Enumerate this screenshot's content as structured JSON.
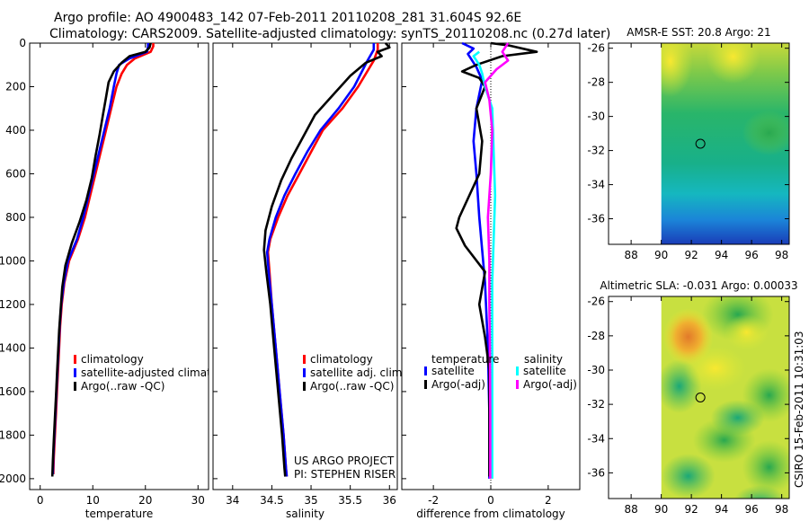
{
  "header": {
    "line1": "Argo profile: AO 4900483_142 07-Feb-2011 20110208_281 31.604S 92.6E",
    "line2": "Climatology: CARS2009. Satellite-adjusted climatology: synTS_20110208.nc (0.27d later)"
  },
  "side_note": "CSIRO 15-Feb-2011 10:31:03",
  "project_note": {
    "line1": "US ARGO PROJECT",
    "line2": "PI: STEPHEN RISER"
  },
  "colors": {
    "climatology": "#ff0000",
    "satellite": "#0000ff",
    "argo": "#000000",
    "sal_satellite": "#00ffff",
    "sal_argo": "#ff00ff"
  },
  "chart_data": [
    {
      "type": "line",
      "id": "temperature",
      "xlabel": "temperature",
      "xlim": [
        -2,
        32
      ],
      "ylim": [
        2050,
        0
      ],
      "xticks": [
        0,
        10,
        20,
        30
      ],
      "yticks": [
        0,
        200,
        400,
        600,
        800,
        1000,
        1200,
        1400,
        1600,
        1800,
        2000
      ],
      "legend": [
        "climatology",
        "satellite-adjusted climatology",
        "Argo(..raw -QC)"
      ],
      "series": [
        {
          "name": "climatology",
          "color": "#ff0000",
          "points": [
            [
              21.5,
              0
            ],
            [
              21.5,
              15
            ],
            [
              21,
              40
            ],
            [
              18,
              70
            ],
            [
              16.5,
              100
            ],
            [
              15.5,
              140
            ],
            [
              14.5,
              200
            ],
            [
              13.5,
              300
            ],
            [
              12.5,
              400
            ],
            [
              11.5,
              500
            ],
            [
              10.5,
              600
            ],
            [
              9.5,
              700
            ],
            [
              8.5,
              800
            ],
            [
              7.2,
              900
            ],
            [
              5.5,
              1000
            ],
            [
              4.6,
              1100
            ],
            [
              4.1,
              1200
            ],
            [
              3.8,
              1300
            ],
            [
              3.6,
              1400
            ],
            [
              3.4,
              1500
            ],
            [
              3.2,
              1600
            ],
            [
              3.0,
              1700
            ],
            [
              2.8,
              1800
            ],
            [
              2.6,
              1900
            ],
            [
              2.5,
              1980
            ]
          ]
        },
        {
          "name": "satellite-adjusted climatology",
          "color": "#0000ff",
          "points": [
            [
              20.5,
              0
            ],
            [
              20.5,
              15
            ],
            [
              20.3,
              40
            ],
            [
              17,
              70
            ],
            [
              15,
              100
            ],
            [
              14.5,
              140
            ],
            [
              14,
              200
            ],
            [
              13.2,
              300
            ],
            [
              12.2,
              400
            ],
            [
              11.2,
              500
            ],
            [
              10.2,
              600
            ],
            [
              9.2,
              700
            ],
            [
              8.2,
              800
            ],
            [
              7,
              900
            ],
            [
              5.3,
              1000
            ],
            [
              4.5,
              1100
            ],
            [
              4,
              1200
            ],
            [
              3.7,
              1300
            ],
            [
              3.5,
              1400
            ],
            [
              3.3,
              1500
            ],
            [
              3.1,
              1600
            ],
            [
              2.9,
              1700
            ],
            [
              2.7,
              1800
            ],
            [
              2.5,
              1900
            ],
            [
              2.4,
              1980
            ]
          ]
        },
        {
          "name": "Argo(..raw -QC)",
          "color": "#000000",
          "points": [
            [
              21,
              0
            ],
            [
              20.8,
              20
            ],
            [
              20,
              40
            ],
            [
              17,
              60
            ],
            [
              15.5,
              90
            ],
            [
              14,
              130
            ],
            [
              13,
              180
            ],
            [
              12.5,
              250
            ],
            [
              12,
              320
            ],
            [
              11.3,
              420
            ],
            [
              10.5,
              520
            ],
            [
              9.8,
              620
            ],
            [
              8.8,
              720
            ],
            [
              7.5,
              820
            ],
            [
              6,
              920
            ],
            [
              4.8,
              1020
            ],
            [
              4.2,
              1120
            ],
            [
              3.9,
              1220
            ],
            [
              3.6,
              1320
            ],
            [
              3.4,
              1420
            ],
            [
              3.2,
              1520
            ],
            [
              3.0,
              1620
            ],
            [
              2.8,
              1720
            ],
            [
              2.6,
              1820
            ],
            [
              2.4,
              1920
            ],
            [
              2.3,
              1990
            ]
          ]
        }
      ]
    },
    {
      "type": "line",
      "id": "salinity",
      "xlabel": "salinity",
      "xlim": [
        33.75,
        36.1
      ],
      "ylim": [
        2050,
        0
      ],
      "xticks": [
        34,
        34.5,
        35,
        35.5,
        36
      ],
      "legend": [
        "climatology",
        "satellite adj. clim.",
        "Argo(..raw -QC)"
      ],
      "series": [
        {
          "name": "climatology",
          "color": "#ff0000",
          "points": [
            [
              35.85,
              0
            ],
            [
              35.85,
              30
            ],
            [
              35.8,
              80
            ],
            [
              35.6,
              200
            ],
            [
              35.4,
              300
            ],
            [
              35.15,
              400
            ],
            [
              35.0,
              500
            ],
            [
              34.85,
              600
            ],
            [
              34.7,
              700
            ],
            [
              34.58,
              800
            ],
            [
              34.48,
              900
            ],
            [
              34.45,
              960
            ],
            [
              34.47,
              1050
            ],
            [
              34.5,
              1200
            ],
            [
              34.55,
              1400
            ],
            [
              34.6,
              1600
            ],
            [
              34.65,
              1800
            ],
            [
              34.68,
              1950
            ],
            [
              34.69,
              1990
            ]
          ]
        },
        {
          "name": "satellite adj. clim.",
          "color": "#0000ff",
          "points": [
            [
              35.8,
              0
            ],
            [
              35.8,
              30
            ],
            [
              35.72,
              80
            ],
            [
              35.55,
              200
            ],
            [
              35.35,
              300
            ],
            [
              35.12,
              400
            ],
            [
              34.95,
              500
            ],
            [
              34.8,
              600
            ],
            [
              34.66,
              700
            ],
            [
              34.55,
              800
            ],
            [
              34.47,
              900
            ],
            [
              34.44,
              960
            ],
            [
              34.46,
              1050
            ],
            [
              34.5,
              1200
            ],
            [
              34.55,
              1400
            ],
            [
              34.6,
              1600
            ],
            [
              34.65,
              1800
            ],
            [
              34.68,
              1950
            ],
            [
              34.69,
              1990
            ]
          ]
        },
        {
          "name": "Argo(..raw -QC)",
          "color": "#000000",
          "points": [
            [
              35.95,
              0
            ],
            [
              36.0,
              20
            ],
            [
              35.85,
              40
            ],
            [
              35.9,
              60
            ],
            [
              35.7,
              90
            ],
            [
              35.5,
              150
            ],
            [
              35.3,
              230
            ],
            [
              35.05,
              330
            ],
            [
              34.9,
              430
            ],
            [
              34.75,
              530
            ],
            [
              34.62,
              630
            ],
            [
              34.5,
              750
            ],
            [
              34.42,
              860
            ],
            [
              34.4,
              950
            ],
            [
              34.43,
              1050
            ],
            [
              34.48,
              1200
            ],
            [
              34.53,
              1400
            ],
            [
              34.58,
              1600
            ],
            [
              34.63,
              1800
            ],
            [
              34.66,
              1950
            ],
            [
              34.67,
              1990
            ]
          ]
        }
      ]
    },
    {
      "type": "line",
      "id": "difference",
      "xlabel": "difference from climatology",
      "xlim": [
        -3.1,
        3.1
      ],
      "ylim": [
        2050,
        0
      ],
      "xticks": [
        -2,
        0,
        2
      ],
      "legend_titles": [
        "temperature",
        "salinity"
      ],
      "legend": [
        "satellite",
        "Argo(-adj)",
        "satellite",
        "Argo(-adj)"
      ],
      "series": [
        {
          "name": "temperature satellite",
          "color": "#0000ff",
          "points": [
            [
              -1,
              0
            ],
            [
              -0.6,
              25
            ],
            [
              -0.8,
              50
            ],
            [
              -0.5,
              110
            ],
            [
              -0.3,
              170
            ],
            [
              -0.5,
              300
            ],
            [
              -0.6,
              450
            ],
            [
              -0.5,
              600
            ],
            [
              -0.4,
              800
            ],
            [
              -0.2,
              1100
            ],
            [
              -0.1,
              1400
            ],
            [
              -0.05,
              1700
            ],
            [
              -0.05,
              2000
            ]
          ]
        },
        {
          "name": "temperature Argo(-adj)",
          "color": "#000000",
          "points": [
            [
              0,
              0
            ],
            [
              0.6,
              10
            ],
            [
              1.6,
              40
            ],
            [
              0.4,
              60
            ],
            [
              -0.5,
              100
            ],
            [
              -1,
              130
            ],
            [
              -0.4,
              160
            ],
            [
              -0.2,
              200
            ],
            [
              -0.5,
              300
            ],
            [
              -0.3,
              450
            ],
            [
              -0.4,
              600
            ],
            [
              -1.1,
              800
            ],
            [
              -1.2,
              850
            ],
            [
              -0.9,
              930
            ],
            [
              -0.2,
              1050
            ],
            [
              -0.4,
              1200
            ],
            [
              -0.2,
              1350
            ],
            [
              -0.05,
              1500
            ],
            [
              -0.05,
              1700
            ],
            [
              -0.05,
              1990
            ]
          ]
        },
        {
          "name": "salinity satellite",
          "color": "#00ffff",
          "points": [
            [
              -0.4,
              40
            ],
            [
              -0.6,
              60
            ],
            [
              -0.4,
              100
            ],
            [
              -0.3,
              140
            ],
            [
              -0.2,
              200
            ],
            [
              0.05,
              300
            ],
            [
              0.1,
              500
            ],
            [
              0.15,
              700
            ],
            [
              0.1,
              900
            ],
            [
              0.05,
              1100
            ],
            [
              0.05,
              1400
            ],
            [
              0.05,
              1700
            ],
            [
              0.05,
              2000
            ]
          ]
        },
        {
          "name": "salinity Argo(-adj)",
          "color": "#ff00ff",
          "points": [
            [
              0.6,
              0
            ],
            [
              0.4,
              40
            ],
            [
              0.6,
              80
            ],
            [
              0.2,
              120
            ],
            [
              -0.2,
              180
            ],
            [
              -0.05,
              260
            ],
            [
              0.05,
              400
            ],
            [
              0.0,
              600
            ],
            [
              -0.1,
              800
            ],
            [
              -0.05,
              1000
            ],
            [
              -0.05,
              1200
            ],
            [
              -0.03,
              1400
            ],
            [
              -0.02,
              1700
            ],
            [
              -0.02,
              2000
            ]
          ]
        }
      ]
    },
    {
      "type": "heatmap",
      "id": "sst_map",
      "title": "AMSR-E SST: 20.8 Argo: 21",
      "xlim": [
        86.5,
        98.5
      ],
      "ylim": [
        -37.5,
        -25.7
      ],
      "xticks": [
        88,
        90,
        92,
        94,
        96,
        98
      ],
      "yticks": [
        -26,
        -28,
        -30,
        -32,
        -34,
        -36
      ],
      "marker": {
        "lon": 92.6,
        "lat": -31.6
      }
    },
    {
      "type": "heatmap",
      "id": "sla_map",
      "title": "Altimetric SLA: -0.031 Argo: 0.00033",
      "xlim": [
        86.5,
        98.5
      ],
      "ylim": [
        -37.5,
        -25.7
      ],
      "xticks": [
        88,
        90,
        92,
        94,
        96,
        98
      ],
      "yticks": [
        -26,
        -28,
        -30,
        -32,
        -34,
        -36
      ],
      "marker": {
        "lon": 92.6,
        "lat": -31.6
      }
    }
  ]
}
